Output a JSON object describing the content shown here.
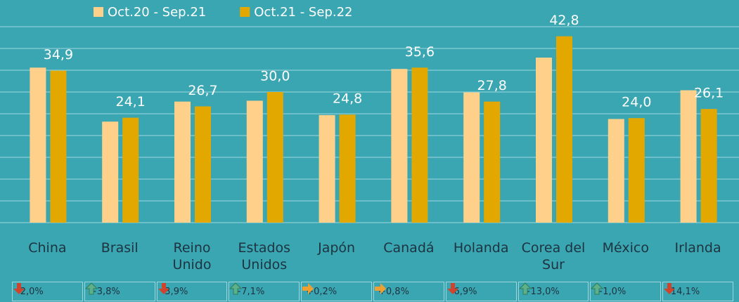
{
  "chart_data": {
    "type": "bar",
    "categories": [
      "China",
      "Brasil",
      "Reino Unido",
      "Estados Unidos",
      "Japón",
      "Canadá",
      "Holanda",
      "Corea del Sur",
      "México",
      "Irlanda"
    ],
    "series": [
      {
        "name": "Oct.20 - Sep.21",
        "color": "#ffd08a",
        "values": [
          35.6,
          23.2,
          27.8,
          28.0,
          24.7,
          35.3,
          29.9,
          37.9,
          23.8,
          30.4
        ]
      },
      {
        "name": "Oct.21 - Sep.22",
        "color": "#e3a800",
        "values": [
          34.9,
          24.1,
          26.7,
          30.0,
          24.8,
          35.6,
          27.8,
          42.8,
          24.0,
          26.1
        ],
        "value_labels": [
          "34,9",
          "24,1",
          "26,7",
          "30,0",
          "24,8",
          "35,6",
          "27,8",
          "42,8",
          "24,0",
          "26,1"
        ]
      }
    ],
    "changes": [
      {
        "value": -2.0,
        "label": "-2,0%"
      },
      {
        "value": 3.8,
        "label": "+3,8%"
      },
      {
        "value": -3.9,
        "label": "-3,9%"
      },
      {
        "value": 7.1,
        "label": "+7,1%"
      },
      {
        "value": 0.2,
        "label": "+0,2%"
      },
      {
        "value": 0.8,
        "label": "+0,8%"
      },
      {
        "value": -6.9,
        "label": "-6,9%"
      },
      {
        "value": 13.0,
        "label": "+13,0%"
      },
      {
        "value": 1.0,
        "label": "+1,0%"
      },
      {
        "value": -14.1,
        "label": "-14,1%"
      }
    ],
    "ylim": [
      0,
      45
    ],
    "yticks": [
      0,
      5,
      10,
      15,
      20,
      25,
      30,
      35,
      40,
      45
    ],
    "grid": true,
    "legend": "top"
  }
}
